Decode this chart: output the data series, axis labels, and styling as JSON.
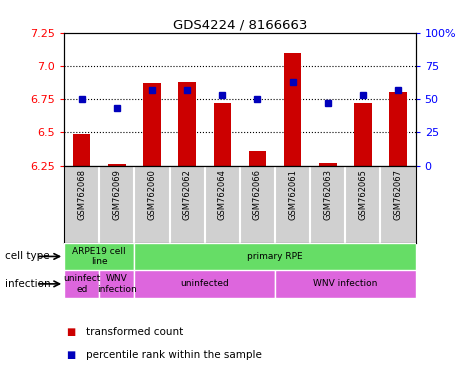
{
  "title": "GDS4224 / 8166663",
  "samples": [
    "GSM762068",
    "GSM762069",
    "GSM762060",
    "GSM762062",
    "GSM762064",
    "GSM762066",
    "GSM762061",
    "GSM762063",
    "GSM762065",
    "GSM762067"
  ],
  "transformed_counts": [
    6.49,
    6.26,
    6.87,
    6.88,
    6.72,
    6.36,
    7.1,
    6.27,
    6.72,
    6.8
  ],
  "percentile_ranks": [
    50,
    43,
    57,
    57,
    53,
    50,
    63,
    47,
    53,
    57
  ],
  "y_min": 6.25,
  "y_max": 7.25,
  "y_ticks": [
    6.25,
    6.5,
    6.75,
    7.0,
    7.25
  ],
  "y2_ticks": [
    0,
    25,
    50,
    75,
    100
  ],
  "y2_labels": [
    "0",
    "25",
    "50",
    "75",
    "100%"
  ],
  "dotted_lines": [
    6.5,
    6.75,
    7.0
  ],
  "cell_groups": [
    {
      "label": "ARPE19 cell\nline",
      "start": 0,
      "end": 2,
      "color": "#66dd66"
    },
    {
      "label": "primary RPE",
      "start": 2,
      "end": 10,
      "color": "#66dd66"
    }
  ],
  "inf_groups": [
    {
      "label": "uninfect\ned",
      "start": 0,
      "end": 1,
      "color": "#dd66dd"
    },
    {
      "label": "WNV\ninfection",
      "start": 1,
      "end": 2,
      "color": "#dd66dd"
    },
    {
      "label": "uninfected",
      "start": 2,
      "end": 6,
      "color": "#dd66dd"
    },
    {
      "label": "WNV infection",
      "start": 6,
      "end": 10,
      "color": "#dd66dd"
    }
  ],
  "bar_color": "#cc0000",
  "dot_color": "#0000bb",
  "bar_width": 0.5,
  "background_color": "#ffffff",
  "sample_bg_color": "#d0d0d0",
  "cell_type_label": "cell type",
  "infection_label": "infection",
  "legend_bar": "transformed count",
  "legend_dot": "percentile rank within the sample"
}
